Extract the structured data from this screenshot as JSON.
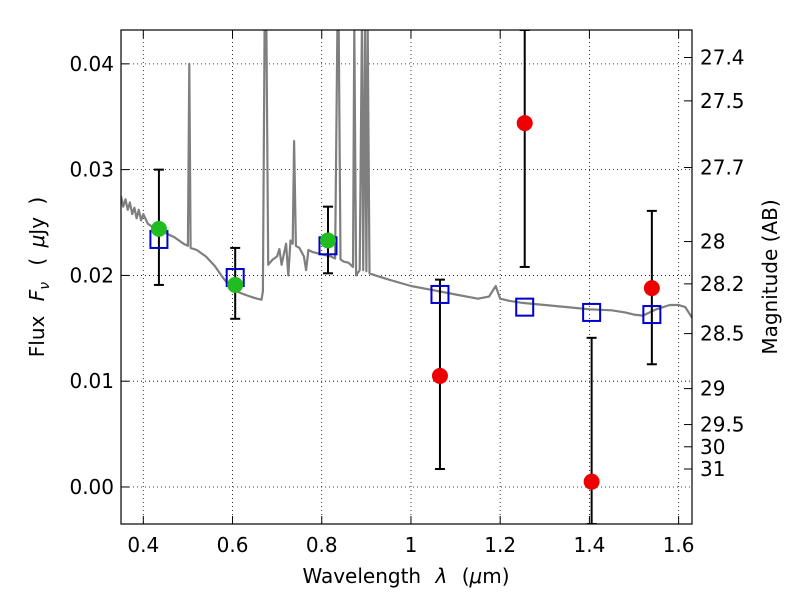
{
  "chart_data": {
    "type": "scatter",
    "title": "",
    "xlabel_parts": [
      "Wavelength",
      "λ",
      "(",
      "μ",
      "m)"
    ],
    "ylabel_parts": [
      "Flux",
      "F",
      "ν",
      "(",
      "μ",
      "Jy",
      ")"
    ],
    "y2label": "Magnitude (AB)",
    "xlim": [
      0.35,
      1.63
    ],
    "ylim": [
      -0.0035,
      0.0432
    ],
    "grid": true,
    "grid_style": "dotted",
    "x_ticks": [
      {
        "value": 0.4,
        "label": "0.4"
      },
      {
        "value": 0.6,
        "label": "0.6"
      },
      {
        "value": 0.8,
        "label": "0.8"
      },
      {
        "value": 1.0,
        "label": "1"
      },
      {
        "value": 1.2,
        "label": "1.2"
      },
      {
        "value": 1.4,
        "label": "1.4"
      },
      {
        "value": 1.6,
        "label": "1.6"
      }
    ],
    "y_ticks": [
      {
        "value": 0.0,
        "label": "0.00"
      },
      {
        "value": 0.01,
        "label": "0.01"
      },
      {
        "value": 0.02,
        "label": "0.02"
      },
      {
        "value": 0.03,
        "label": "0.03"
      },
      {
        "value": 0.04,
        "label": "0.04"
      }
    ],
    "y2_ticks": [
      {
        "flux": 0.0406,
        "label": "27.4"
      },
      {
        "flux": 0.0365,
        "label": "27.5"
      },
      {
        "flux": 0.0302,
        "label": "27.7"
      },
      {
        "flux": 0.0232,
        "label": "28"
      },
      {
        "flux": 0.0192,
        "label": "28.2"
      },
      {
        "flux": 0.0145,
        "label": "28.5"
      },
      {
        "flux": 0.0093,
        "label": "29"
      },
      {
        "flux": 0.0059,
        "label": "29.5"
      },
      {
        "flux": 0.0038,
        "label": "30"
      },
      {
        "flux": 0.0017,
        "label": "31"
      }
    ],
    "model_spectrum": {
      "color": "#7f7f7f",
      "points": [
        [
          0.35,
          0.0275
        ],
        [
          0.355,
          0.0265
        ],
        [
          0.36,
          0.0272
        ],
        [
          0.365,
          0.0262
        ],
        [
          0.37,
          0.0269
        ],
        [
          0.375,
          0.0258
        ],
        [
          0.38,
          0.0264
        ],
        [
          0.385,
          0.0254
        ],
        [
          0.39,
          0.0262
        ],
        [
          0.395,
          0.0252
        ],
        [
          0.4,
          0.0258
        ],
        [
          0.41,
          0.0249
        ],
        [
          0.42,
          0.0246
        ],
        [
          0.43,
          0.0243
        ],
        [
          0.44,
          0.0241
        ],
        [
          0.45,
          0.024
        ],
        [
          0.46,
          0.0238
        ],
        [
          0.47,
          0.0236
        ],
        [
          0.48,
          0.0233
        ],
        [
          0.49,
          0.023
        ],
        [
          0.5,
          0.0228
        ],
        [
          0.503,
          0.04
        ],
        [
          0.506,
          0.0226
        ],
        [
          0.52,
          0.0224
        ],
        [
          0.54,
          0.0218
        ],
        [
          0.56,
          0.0209
        ],
        [
          0.58,
          0.0197
        ],
        [
          0.6,
          0.0187
        ],
        [
          0.62,
          0.0183
        ],
        [
          0.64,
          0.018
        ],
        [
          0.655,
          0.0178
        ],
        [
          0.665,
          0.0177
        ],
        [
          0.668,
          0.0185
        ],
        [
          0.672,
          0.0435
        ],
        [
          0.676,
          0.0435
        ],
        [
          0.68,
          0.021
        ],
        [
          0.69,
          0.0215
        ],
        [
          0.7,
          0.0218
        ],
        [
          0.705,
          0.0225
        ],
        [
          0.71,
          0.021
        ],
        [
          0.72,
          0.023
        ],
        [
          0.725,
          0.02
        ],
        [
          0.73,
          0.0233
        ],
        [
          0.735,
          0.023
        ],
        [
          0.738,
          0.0327
        ],
        [
          0.742,
          0.0228
        ],
        [
          0.75,
          0.0226
        ],
        [
          0.76,
          0.0218
        ],
        [
          0.765,
          0.0205
        ],
        [
          0.77,
          0.0224
        ],
        [
          0.78,
          0.0222
        ],
        [
          0.79,
          0.0221
        ],
        [
          0.8,
          0.022
        ],
        [
          0.81,
          0.0219
        ],
        [
          0.82,
          0.0218
        ],
        [
          0.83,
          0.0216
        ],
        [
          0.835,
          0.0435
        ],
        [
          0.838,
          0.0435
        ],
        [
          0.842,
          0.0215
        ],
        [
          0.85,
          0.0213
        ],
        [
          0.86,
          0.0212
        ],
        [
          0.87,
          0.0208
        ],
        [
          0.873,
          0.0435
        ],
        [
          0.877,
          0.02
        ],
        [
          0.885,
          0.0205
        ],
        [
          0.89,
          0.0435
        ],
        [
          0.893,
          0.0205
        ],
        [
          0.897,
          0.0435
        ],
        [
          0.9,
          0.0204
        ],
        [
          0.903,
          0.0435
        ],
        [
          0.907,
          0.0202
        ],
        [
          0.92,
          0.02
        ],
        [
          0.95,
          0.0196
        ],
        [
          1.0,
          0.019
        ],
        [
          1.05,
          0.0186
        ],
        [
          1.1,
          0.0182
        ],
        [
          1.15,
          0.0178
        ],
        [
          1.175,
          0.018
        ],
        [
          1.19,
          0.019
        ],
        [
          1.2,
          0.0178
        ],
        [
          1.22,
          0.0176
        ],
        [
          1.25,
          0.0174
        ],
        [
          1.3,
          0.0172
        ],
        [
          1.35,
          0.017
        ],
        [
          1.4,
          0.0168
        ],
        [
          1.45,
          0.0167
        ],
        [
          1.48,
          0.0165
        ],
        [
          1.5,
          0.0163
        ],
        [
          1.52,
          0.0162
        ],
        [
          1.55,
          0.0168
        ],
        [
          1.58,
          0.0172
        ],
        [
          1.6,
          0.0172
        ],
        [
          1.615,
          0.017
        ],
        [
          1.63,
          0.016
        ]
      ]
    },
    "model_photometry": {
      "marker": "open-square",
      "color": "#0000cc",
      "points": [
        {
          "x": 0.435,
          "y": 0.0234
        },
        {
          "x": 0.606,
          "y": 0.0198
        },
        {
          "x": 0.814,
          "y": 0.0228
        },
        {
          "x": 1.065,
          "y": 0.0182
        },
        {
          "x": 1.255,
          "y": 0.017
        },
        {
          "x": 1.405,
          "y": 0.0165
        },
        {
          "x": 1.54,
          "y": 0.0163
        }
      ]
    },
    "observed_points": [
      {
        "x": 0.435,
        "y": 0.0244,
        "err_low": 0.0191,
        "err_high": 0.03,
        "color": "#22bb22"
      },
      {
        "x": 0.606,
        "y": 0.0191,
        "err_low": 0.0159,
        "err_high": 0.0226,
        "color": "#22bb22"
      },
      {
        "x": 0.814,
        "y": 0.0233,
        "err_low": 0.0202,
        "err_high": 0.0265,
        "color": "#22bb22"
      },
      {
        "x": 1.065,
        "y": 0.0105,
        "err_low": 0.0017,
        "err_high": 0.0196,
        "color": "#ee0000"
      },
      {
        "x": 1.255,
        "y": 0.0344,
        "err_low": 0.0208,
        "err_high": 0.0432,
        "color": "#ee0000"
      },
      {
        "x": 1.405,
        "y": 0.0005,
        "err_low": -0.0035,
        "err_high": 0.0141,
        "color": "#ee0000"
      },
      {
        "x": 1.54,
        "y": 0.0188,
        "err_low": 0.0116,
        "err_high": 0.0261,
        "color": "#ee0000"
      }
    ]
  }
}
